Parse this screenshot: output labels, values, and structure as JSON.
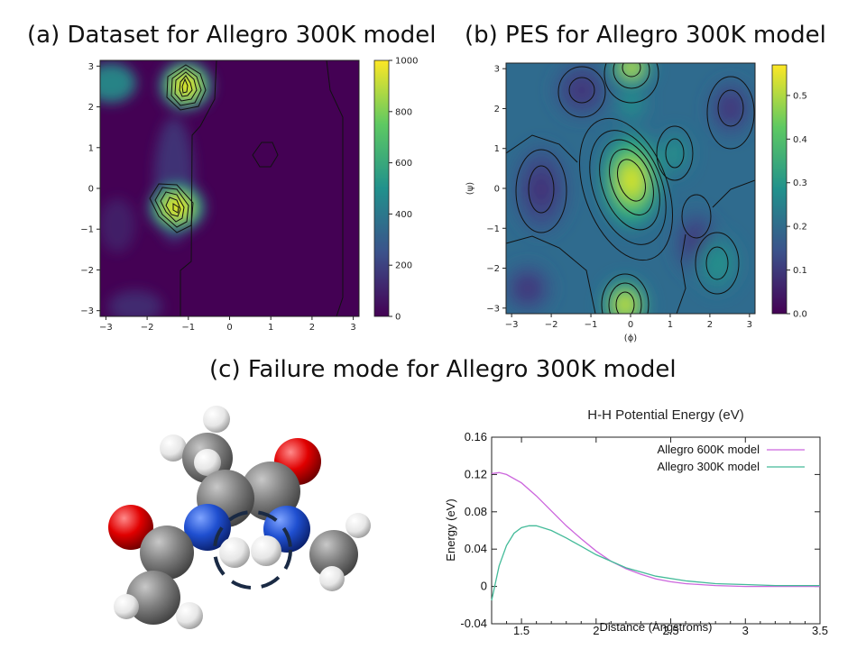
{
  "titles": {
    "a": "(a) Dataset for Allegro 300K model",
    "b": "(b) PES for Allegro 300K model",
    "c": "(c) Failure mode for Allegro 300K model"
  },
  "colors": {
    "viridis_low": "#440154",
    "viridis_mid": "#21918c",
    "viridis_high": "#fde725",
    "series_600K": "#cc66dd",
    "series_300K": "#44bb99",
    "carbon": "#808080",
    "nitrogen": "#1f4fd0",
    "oxygen": "#e00000",
    "hydrogen": "#e8e8e8",
    "highlight_circle": "#1a2a44"
  },
  "chart_data": [
    {
      "type": "heatmap",
      "panel": "a",
      "title": "",
      "xlabel": "",
      "ylabel": "",
      "xlim": [
        -3.14,
        3.14
      ],
      "ylim": [
        -3.14,
        3.14
      ],
      "xticks": [
        "-3",
        "-2",
        "-1",
        "0",
        "1",
        "2",
        "3"
      ],
      "yticks": [
        "-3",
        "-2",
        "-1",
        "0",
        "1",
        "2",
        "3"
      ],
      "colorbar": {
        "min": 0,
        "max": 1000,
        "ticks": [
          "0",
          "200",
          "400",
          "600",
          "800",
          "1000"
        ],
        "colormap": "viridis"
      },
      "peaks": [
        {
          "x": -1.2,
          "y": 2.6,
          "value": 1000
        },
        {
          "x": -1.45,
          "y": -0.5,
          "value": 1000
        },
        {
          "x": -3.0,
          "y": 2.6,
          "value": 450
        },
        {
          "x": -1.75,
          "y": 1.1,
          "value": 200
        }
      ]
    },
    {
      "type": "heatmap",
      "panel": "b",
      "title": "",
      "xlabel": "(ϕ)",
      "ylabel": "(ψ)",
      "xlim": [
        -3.14,
        3.14
      ],
      "ylim": [
        -3.14,
        3.14
      ],
      "xticks": [
        "-3",
        "-2",
        "-1",
        "0",
        "1",
        "2",
        "3"
      ],
      "yticks": [
        "-3",
        "-2",
        "-1",
        "0",
        "1",
        "2",
        "3"
      ],
      "colorbar": {
        "min": 0.0,
        "max": 0.57,
        "ticks": [
          "0.0",
          "0.1",
          "0.2",
          "0.3",
          "0.4",
          "0.5"
        ],
        "colormap": "viridis"
      },
      "maxima": [
        {
          "x": 0.1,
          "y": 0.2,
          "value": 0.57
        },
        {
          "x": -0.1,
          "y": -3.0,
          "value": 0.5
        },
        {
          "x": 0.1,
          "y": 3.1,
          "value": 0.5
        },
        {
          "x": 2.3,
          "y": -1.9,
          "value": 0.25
        },
        {
          "x": 1.0,
          "y": 0.8,
          "value": 0.22
        }
      ],
      "minima": [
        {
          "x": -1.4,
          "y": 0.0,
          "value": 0.02
        },
        {
          "x": -1.0,
          "y": 2.5,
          "value": 0.03
        },
        {
          "x": 1.6,
          "y": -1.3,
          "value": 0.04
        }
      ]
    },
    {
      "type": "line",
      "panel": "c",
      "title": "H-H Potential Energy (eV)",
      "xlabel": "Distance (Angstroms)",
      "ylabel": "Energy (eV)",
      "xlim": [
        1.3,
        3.5
      ],
      "ylim": [
        -0.04,
        0.16
      ],
      "xticks": [
        "1.5",
        "2",
        "2.5",
        "3",
        "3.5"
      ],
      "yticks": [
        "-0.04",
        "0",
        "0.04",
        "0.08",
        "0.12",
        "0.16"
      ],
      "legend_position": "top-right",
      "series": [
        {
          "name": "Allegro 600K model",
          "x": [
            1.3,
            1.35,
            1.4,
            1.5,
            1.6,
            1.7,
            1.8,
            1.9,
            2.0,
            2.1,
            2.2,
            2.3,
            2.4,
            2.5,
            2.6,
            2.8,
            3.0,
            3.2,
            3.5
          ],
          "y": [
            0.121,
            0.122,
            0.12,
            0.111,
            0.097,
            0.081,
            0.065,
            0.051,
            0.038,
            0.027,
            0.019,
            0.013,
            0.008,
            0.005,
            0.003,
            0.001,
            0.0,
            0.0,
            0.0
          ]
        },
        {
          "name": "Allegro 300K model",
          "x": [
            1.3,
            1.35,
            1.4,
            1.45,
            1.5,
            1.55,
            1.6,
            1.7,
            1.8,
            1.9,
            2.0,
            2.2,
            2.4,
            2.6,
            2.8,
            3.0,
            3.2,
            3.5
          ],
          "y": [
            -0.015,
            0.022,
            0.044,
            0.057,
            0.063,
            0.065,
            0.065,
            0.06,
            0.052,
            0.043,
            0.034,
            0.02,
            0.011,
            0.006,
            0.003,
            0.002,
            0.001,
            0.001
          ]
        }
      ]
    }
  ]
}
